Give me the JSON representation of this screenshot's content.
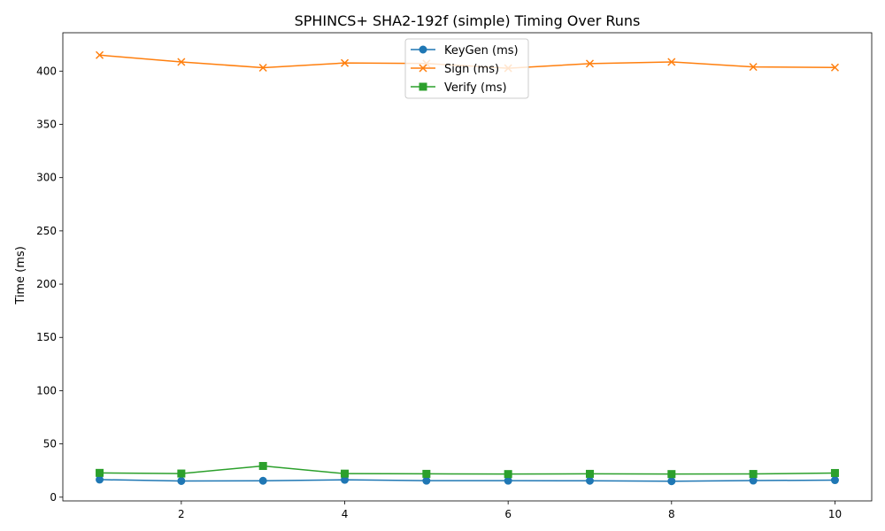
{
  "chart_data": {
    "type": "line",
    "title": "SPHINCS+ SHA2-192f (simple) Timing Over Runs",
    "xlabel": "",
    "ylabel": "Time (ms)",
    "x": [
      1,
      2,
      3,
      4,
      5,
      6,
      7,
      8,
      9,
      10
    ],
    "xlim": [
      0.55,
      10.45
    ],
    "ylim": [
      -3.5,
      436
    ],
    "xticks": [
      2,
      4,
      6,
      8,
      10
    ],
    "yticks": [
      0,
      50,
      100,
      150,
      200,
      250,
      300,
      350,
      400
    ],
    "grid": false,
    "legend_position": "upper center",
    "series": [
      {
        "name": "KeyGen (ms)",
        "color": "#1f77b4",
        "marker": "circle",
        "values": [
          16.5,
          15.2,
          15.4,
          16.3,
          15.5,
          15.5,
          15.4,
          15.0,
          15.6,
          16.0
        ]
      },
      {
        "name": "Sign (ms)",
        "color": "#ff7f0e",
        "marker": "x",
        "values": [
          415.0,
          408.6,
          403.2,
          407.6,
          407.1,
          402.7,
          407.0,
          408.6,
          403.9,
          403.4
        ]
      },
      {
        "name": "Verify (ms)",
        "color": "#2ca02c",
        "marker": "square",
        "values": [
          22.8,
          22.2,
          29.3,
          22.1,
          21.9,
          21.7,
          21.9,
          21.7,
          21.8,
          22.7
        ]
      }
    ]
  }
}
